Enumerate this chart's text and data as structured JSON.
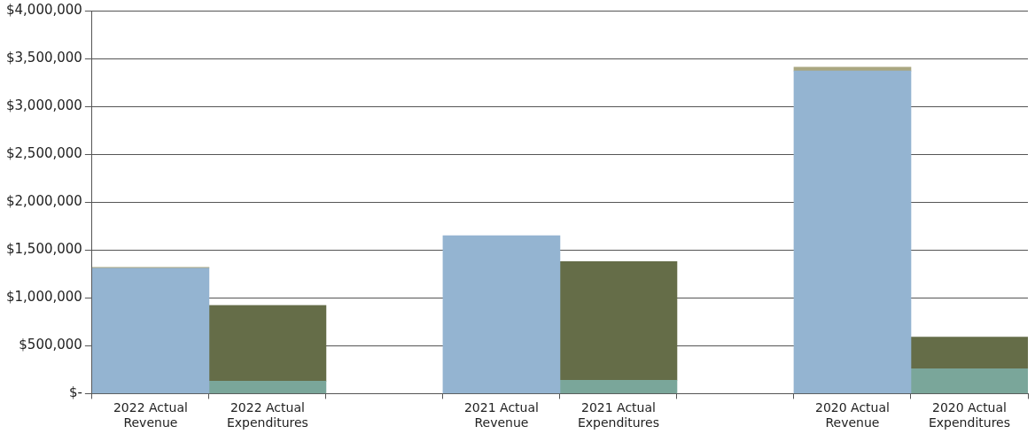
{
  "chart_data": {
    "type": "bar",
    "stacked": true,
    "categories": [
      "2022 Actual Revenue",
      "2022 Actual Expenditures",
      null,
      "2021 Actual Revenue",
      "2021 Actual Expenditures",
      null,
      "2020 Actual Revenue",
      "2020 Actual Expenditures"
    ],
    "series": [
      {
        "color": "#94b4d1",
        "values": [
          1310000,
          null,
          null,
          1650000,
          null,
          null,
          3370000,
          null
        ]
      },
      {
        "color": "#7aa69a",
        "values": [
          null,
          130000,
          null,
          null,
          140000,
          null,
          null,
          260000
        ]
      },
      {
        "color": "#656d48",
        "values": [
          null,
          790000,
          null,
          null,
          1240000,
          null,
          null,
          330000
        ]
      },
      {
        "color": "#aaa780",
        "values": [
          10000,
          null,
          null,
          null,
          null,
          null,
          40000,
          null
        ]
      }
    ],
    "ylim": [
      0,
      4000000
    ],
    "yticks": [
      {
        "value": 0,
        "label": "$-"
      },
      {
        "value": 500000,
        "label": "$500,000"
      },
      {
        "value": 1000000,
        "label": "$1,000,000"
      },
      {
        "value": 1500000,
        "label": "$1,500,000"
      },
      {
        "value": 2000000,
        "label": "$2,000,000"
      },
      {
        "value": 2500000,
        "label": "$2,500,000"
      },
      {
        "value": 3000000,
        "label": "$3,000,000"
      },
      {
        "value": 3500000,
        "label": "$3,500,000"
      },
      {
        "value": 4000000,
        "label": "$4,000,000"
      }
    ],
    "grid": "y",
    "legend": false
  }
}
